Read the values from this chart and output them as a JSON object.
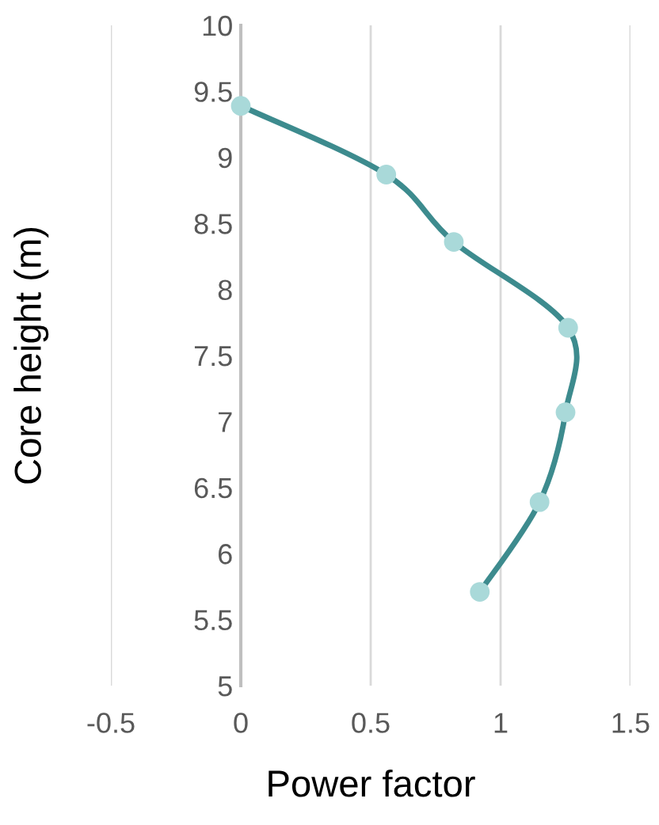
{
  "chart_data": {
    "type": "line",
    "xlabel": "Power factor",
    "ylabel": "Core height (m)",
    "xlim": [
      -0.5,
      1.5
    ],
    "xticks": [
      -0.5,
      0,
      0.5,
      1,
      1.5
    ],
    "ylim": [
      5,
      10
    ],
    "yticks": [
      5,
      5.5,
      6,
      6.5,
      7,
      7.5,
      8,
      8.5,
      9,
      9.5,
      10
    ],
    "grid": "x",
    "marker": "circle",
    "line_style": "solid",
    "series": [
      {
        "color": "#3d8b8e",
        "colors": [
          "#a9d9d9",
          "#a9d9d9",
          "#a9d9d9",
          "#a9d9d9",
          "#a9d9d9",
          "#a9d9d9",
          "#a9d9d9"
        ],
        "x": [
          0,
          0.56,
          0.82,
          1.26,
          1.25,
          1.15,
          0.92
        ],
        "values": [
          9.39,
          8.87,
          8.36,
          7.71,
          7.07,
          6.39,
          5.71
        ]
      }
    ]
  }
}
